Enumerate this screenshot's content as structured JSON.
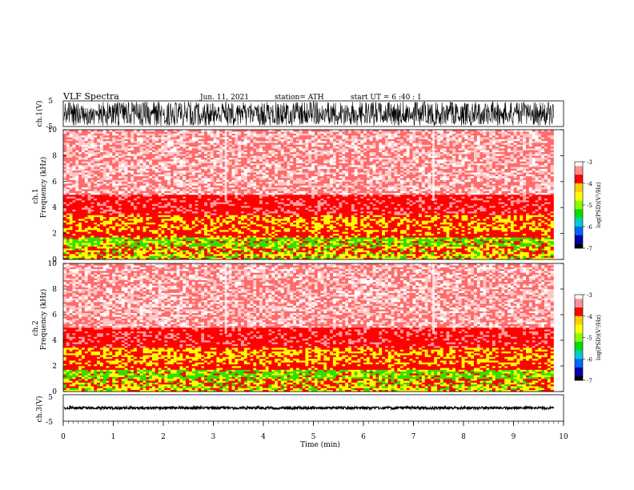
{
  "header": {
    "title": "VLF  Spectra",
    "date": "Jun. 11, 2021",
    "station": "station= ATH",
    "start": "start  UT  =    6  :40 : 1"
  },
  "chart_data": [
    {
      "type": "line",
      "name": "ch1-waveform",
      "ylabel": "ch.1(V)",
      "ylim": [
        -5,
        5
      ],
      "yticks": [
        "5",
        "-5"
      ],
      "xlim": [
        0,
        10
      ]
    },
    {
      "type": "heatmap",
      "name": "ch1-spectrogram",
      "ylabel_top": "ch.1",
      "ylabel": "Frequency  (kHz)",
      "ylim": [
        0,
        10
      ],
      "yticks": [
        "10",
        "8",
        "6",
        "4",
        "2",
        "0"
      ],
      "xlim": [
        0,
        9.8
      ],
      "colorbar": {
        "label": "log(PSD)(V²/Hz)",
        "range": [
          -7,
          -3
        ],
        "ticks": [
          "-3",
          "-4",
          "-5",
          "-6",
          "-7"
        ]
      }
    },
    {
      "type": "heatmap",
      "name": "ch2-spectrogram",
      "ylabel_top": "ch.2",
      "ylabel": "Frequency  (kHz)",
      "ylim": [
        0,
        10
      ],
      "yticks": [
        "10",
        "8",
        "6",
        "4",
        "2",
        "0"
      ],
      "xlim": [
        0,
        9.8
      ],
      "colorbar": {
        "label": "log(PSD)(V²/Hz)",
        "range": [
          -7,
          -3
        ],
        "ticks": [
          "-3",
          "-4",
          "-5",
          "-6",
          "-7"
        ]
      }
    },
    {
      "type": "line",
      "name": "ch3-waveform",
      "ylabel": "ch.3(V)",
      "ylim": [
        -5,
        5
      ],
      "yticks": [
        "5",
        "-5"
      ],
      "xlim": [
        0,
        10
      ],
      "xlabel": "Time  (min)",
      "xticks": [
        "0",
        "1",
        "2",
        "3",
        "4",
        "5",
        "6",
        "7",
        "8",
        "9",
        "10"
      ]
    }
  ],
  "colors": {
    "background": "#ffffff",
    "low": "#ffffff",
    "mid": "#ff0000",
    "yellow": "#ffff00",
    "green": "#33dd00",
    "waveform": "#000000"
  }
}
